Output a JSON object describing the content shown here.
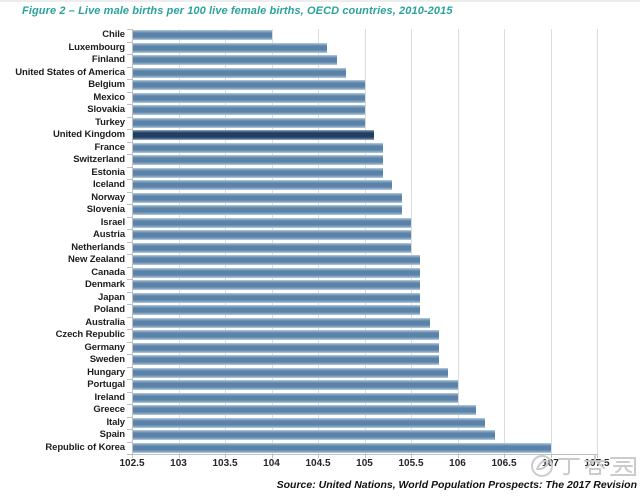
{
  "title": "Figure 2 – Live male births per 100 live female births, OECD countries, 2010-2015",
  "source": "Source: United Nations, World Population Prospects: The 2017 Revision",
  "watermark": {
    "text": "丁香园"
  },
  "colors": {
    "title": "#2aa39b",
    "bar": "#5b83a9",
    "highlight_bar": "#1f3e62",
    "gridline": "#dcdcdc",
    "axis": "#bfbfbf",
    "tick_label": "#262626",
    "watermark": "#c9c9c9"
  },
  "chart_data": {
    "type": "bar",
    "orientation": "horizontal",
    "title": "Figure 2 – Live male births per 100 live female births, OECD countries, 2010-2015",
    "xlabel": "",
    "ylabel": "",
    "xlim": [
      102.5,
      107.5
    ],
    "xticks": [
      102.5,
      103,
      103.5,
      104,
      104.5,
      105,
      105.5,
      106,
      106.5,
      107,
      107.5
    ],
    "grid": true,
    "legend": false,
    "highlight_category": "United Kingdom",
    "categories": [
      "Chile",
      "Luxembourg",
      "Finland",
      "United States of America",
      "Belgium",
      "Mexico",
      "Slovakia",
      "Turkey",
      "United Kingdom",
      "France",
      "Switzerland",
      "Estonia",
      "Iceland",
      "Norway",
      "Slovenia",
      "Israel",
      "Austria",
      "Netherlands",
      "New Zealand",
      "Canada",
      "Denmark",
      "Japan",
      "Poland",
      "Australia",
      "Czech Republic",
      "Germany",
      "Sweden",
      "Hungary",
      "Portugal",
      "Ireland",
      "Greece",
      "Italy",
      "Spain",
      "Republic of Korea"
    ],
    "values": [
      104.0,
      104.6,
      104.7,
      104.8,
      105.0,
      105.0,
      105.0,
      105.0,
      105.1,
      105.2,
      105.2,
      105.2,
      105.3,
      105.4,
      105.4,
      105.5,
      105.5,
      105.5,
      105.6,
      105.6,
      105.6,
      105.6,
      105.6,
      105.7,
      105.8,
      105.8,
      105.8,
      105.9,
      106.0,
      106.0,
      106.2,
      106.3,
      106.4,
      107.0
    ]
  }
}
